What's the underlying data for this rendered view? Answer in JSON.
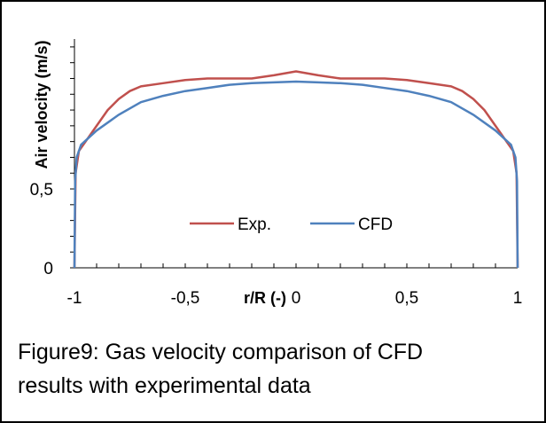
{
  "chart_data": {
    "type": "line",
    "title": "",
    "xlabel": "r/R (-)",
    "ylabel": "Air velocity (m/s)",
    "xlim": [
      -1,
      1
    ],
    "ylim": [
      0,
      1.45
    ],
    "x_ticks": [
      {
        "value": -1,
        "label": "-1"
      },
      {
        "value": -0.5,
        "label": "-0,5"
      },
      {
        "value": 0,
        "label": "0"
      },
      {
        "value": 0.5,
        "label": "0,5"
      },
      {
        "value": 1,
        "label": "1"
      }
    ],
    "y_ticks": [
      {
        "value": 0,
        "label": "0"
      },
      {
        "value": 0.5,
        "label": "0,5"
      }
    ],
    "legend": "center",
    "series": [
      {
        "name": "Exp.",
        "color": "#c0504d",
        "points": [
          [
            -1,
            0.0
          ],
          [
            -0.995,
            0.6
          ],
          [
            -0.98,
            0.74
          ],
          [
            -0.95,
            0.8
          ],
          [
            -0.9,
            0.9
          ],
          [
            -0.85,
            1.0
          ],
          [
            -0.8,
            1.07
          ],
          [
            -0.75,
            1.12
          ],
          [
            -0.7,
            1.15
          ],
          [
            -0.6,
            1.17
          ],
          [
            -0.5,
            1.19
          ],
          [
            -0.4,
            1.2
          ],
          [
            -0.3,
            1.2
          ],
          [
            -0.2,
            1.2
          ],
          [
            -0.1,
            1.22
          ],
          [
            0,
            1.245
          ],
          [
            0.1,
            1.22
          ],
          [
            0.2,
            1.2
          ],
          [
            0.3,
            1.2
          ],
          [
            0.4,
            1.2
          ],
          [
            0.5,
            1.19
          ],
          [
            0.6,
            1.17
          ],
          [
            0.7,
            1.15
          ],
          [
            0.75,
            1.12
          ],
          [
            0.8,
            1.07
          ],
          [
            0.85,
            1.0
          ],
          [
            0.9,
            0.9
          ],
          [
            0.95,
            0.8
          ],
          [
            0.98,
            0.74
          ],
          [
            0.995,
            0.6
          ],
          [
            1,
            0.0
          ]
        ]
      },
      {
        "name": "CFD",
        "color": "#4f81bd",
        "points": [
          [
            -1,
            0.0
          ],
          [
            -0.997,
            0.55
          ],
          [
            -0.99,
            0.7
          ],
          [
            -0.97,
            0.78
          ],
          [
            -0.9,
            0.87
          ],
          [
            -0.8,
            0.97
          ],
          [
            -0.7,
            1.05
          ],
          [
            -0.6,
            1.09
          ],
          [
            -0.5,
            1.12
          ],
          [
            -0.4,
            1.14
          ],
          [
            -0.3,
            1.16
          ],
          [
            -0.2,
            1.17
          ],
          [
            -0.1,
            1.175
          ],
          [
            0,
            1.18
          ],
          [
            0.1,
            1.175
          ],
          [
            0.2,
            1.17
          ],
          [
            0.3,
            1.16
          ],
          [
            0.4,
            1.14
          ],
          [
            0.5,
            1.12
          ],
          [
            0.6,
            1.09
          ],
          [
            0.7,
            1.05
          ],
          [
            0.8,
            0.97
          ],
          [
            0.9,
            0.87
          ],
          [
            0.97,
            0.78
          ],
          [
            0.99,
            0.7
          ],
          [
            0.997,
            0.55
          ],
          [
            1,
            0.0
          ]
        ]
      }
    ]
  },
  "caption": {
    "line1": "Figure9: Gas velocity comparison of CFD",
    "line2": "results with experimental data"
  }
}
